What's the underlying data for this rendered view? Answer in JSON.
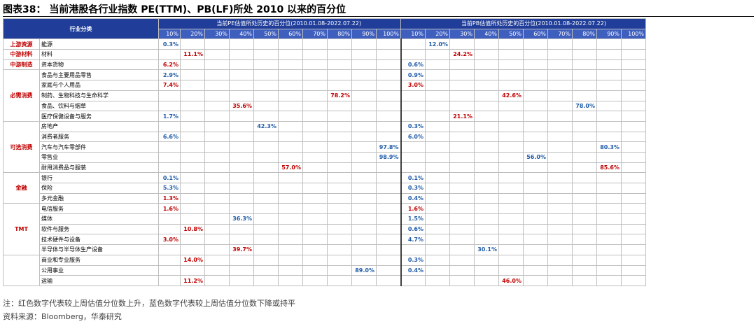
{
  "title": "图表38：  当前港股各行业指数 PE(TTM)、PB(LF)所处 2010 以来的百分位",
  "header": {
    "category_label": "行业分类",
    "pe_group": "当前PE估值所处历史的百分位(2010.01.08-2022.07.22)",
    "pb_group": "当前PB估值所处历史的百分位(2010.01.08-2022.07.22)",
    "pct_labels": [
      "10%",
      "20%",
      "30%",
      "40%",
      "50%",
      "60%",
      "70%",
      "80%",
      "90%",
      "100%"
    ]
  },
  "groups": [
    {
      "sector": "上游资源",
      "rows": [
        {
          "name": "能源",
          "pe": {
            "col": 0,
            "text": "0.3%",
            "color": "blue"
          },
          "pb": {
            "col": 1,
            "text": "12.0%",
            "color": "blue"
          }
        }
      ]
    },
    {
      "sector": "中游材料",
      "rows": [
        {
          "name": "材料",
          "pe": {
            "col": 1,
            "text": "11.1%",
            "color": "red"
          },
          "pb": {
            "col": 2,
            "text": "24.2%",
            "color": "red"
          }
        }
      ]
    },
    {
      "sector": "中游制造",
      "rows": [
        {
          "name": "资本货物",
          "pe": {
            "col": 0,
            "text": "6.2%",
            "color": "red"
          },
          "pb": {
            "col": 0,
            "text": "0.6%",
            "color": "blue"
          }
        }
      ]
    },
    {
      "sector": "必需消费",
      "rows": [
        {
          "name": "食品与主要用品零售",
          "pe": {
            "col": 0,
            "text": "2.9%",
            "color": "blue"
          },
          "pb": {
            "col": 0,
            "text": "0.9%",
            "color": "blue"
          }
        },
        {
          "name": "家庭与个人用品",
          "pe": {
            "col": 0,
            "text": "7.4%",
            "color": "red"
          },
          "pb": {
            "col": 0,
            "text": "3.0%",
            "color": "red"
          }
        },
        {
          "name": "制药、生物科技与生命科学",
          "pe": {
            "col": 7,
            "text": "78.2%",
            "color": "red"
          },
          "pb": {
            "col": 4,
            "text": "42.6%",
            "color": "red"
          }
        },
        {
          "name": "食品、饮料与烟草",
          "pe": {
            "col": 3,
            "text": "35.6%",
            "color": "red"
          },
          "pb": {
            "col": 7,
            "text": "78.0%",
            "color": "blue"
          }
        },
        {
          "name": "医疗保健设备与服务",
          "pe": {
            "col": 0,
            "text": "1.7%",
            "color": "blue"
          },
          "pb": {
            "col": 2,
            "text": "21.1%",
            "color": "red"
          }
        }
      ]
    },
    {
      "sector": "可选消费",
      "rows": [
        {
          "name": "房地产",
          "pe": {
            "col": 4,
            "text": "42.3%",
            "color": "blue"
          },
          "pb": {
            "col": 0,
            "text": "0.3%",
            "color": "blue"
          }
        },
        {
          "name": "消费者服务",
          "pe": {
            "col": 0,
            "text": "6.6%",
            "color": "blue"
          },
          "pb": {
            "col": 0,
            "text": "6.0%",
            "color": "blue"
          }
        },
        {
          "name": "汽车与汽车零部件",
          "pe": {
            "col": 9,
            "text": "97.8%",
            "color": "blue"
          },
          "pb": {
            "col": 8,
            "text": "80.3%",
            "color": "blue"
          }
        },
        {
          "name": "零售业",
          "pe": {
            "col": 9,
            "text": "98.9%",
            "color": "blue"
          },
          "pb": {
            "col": 5,
            "text": "56.0%",
            "color": "blue"
          }
        },
        {
          "name": "耐用消费品与服装",
          "pe": {
            "col": 5,
            "text": "57.0%",
            "color": "red"
          },
          "pb": {
            "col": 8,
            "text": "85.6%",
            "color": "red"
          }
        }
      ]
    },
    {
      "sector": "金融",
      "rows": [
        {
          "name": "银行",
          "pe": {
            "col": 0,
            "text": "0.1%",
            "color": "blue"
          },
          "pb": {
            "col": 0,
            "text": "0.1%",
            "color": "blue"
          }
        },
        {
          "name": "保险",
          "pe": {
            "col": 0,
            "text": "5.3%",
            "color": "blue"
          },
          "pb": {
            "col": 0,
            "text": "0.3%",
            "color": "blue"
          }
        },
        {
          "name": "多元金融",
          "pe": {
            "col": 0,
            "text": "1.3%",
            "color": "red"
          },
          "pb": {
            "col": 0,
            "text": "0.4%",
            "color": "blue"
          }
        }
      ]
    },
    {
      "sector": "TMT",
      "rows": [
        {
          "name": "电信服务",
          "pe": {
            "col": 0,
            "text": "1.6%",
            "color": "red"
          },
          "pb": {
            "col": 0,
            "text": "1.6%",
            "color": "red"
          }
        },
        {
          "name": "媒体",
          "pe": {
            "col": 3,
            "text": "36.3%",
            "color": "blue"
          },
          "pb": {
            "col": 0,
            "text": "1.5%",
            "color": "blue"
          }
        },
        {
          "name": "软件与服务",
          "pe": {
            "col": 1,
            "text": "10.8%",
            "color": "red"
          },
          "pb": {
            "col": 0,
            "text": "0.6%",
            "color": "blue"
          }
        },
        {
          "name": "技术硬件与设备",
          "pe": {
            "col": 0,
            "text": "3.0%",
            "color": "red"
          },
          "pb": {
            "col": 0,
            "text": "4.7%",
            "color": "blue"
          }
        },
        {
          "name": "半导体与半导体生产设备",
          "pe": {
            "col": 3,
            "text": "39.7%",
            "color": "red"
          },
          "pb": {
            "col": 3,
            "text": "30.1%",
            "color": "blue"
          }
        }
      ]
    },
    {
      "sector": "",
      "rows": [
        {
          "name": "商业和专业服务",
          "pe": {
            "col": 1,
            "text": "14.0%",
            "color": "red"
          },
          "pb": {
            "col": 0,
            "text": "0.3%",
            "color": "blue"
          }
        },
        {
          "name": "公用事业",
          "pe": {
            "col": 8,
            "text": "89.0%",
            "color": "blue"
          },
          "pb": {
            "col": 0,
            "text": "0.4%",
            "color": "blue"
          }
        },
        {
          "name": "运输",
          "pe": {
            "col": 1,
            "text": "11.2%",
            "color": "red"
          },
          "pb": {
            "col": 4,
            "text": "46.0%",
            "color": "red"
          }
        }
      ]
    }
  ],
  "colors": {
    "red": "#c00000",
    "blue": "#1f5ba8",
    "header": "#1f3d99"
  },
  "note": "注：红色数字代表较上周估值分位数上升，蓝色数字代表较上周估值分位数下降或持平",
  "source": "资料来源：Bloomberg，华泰研究"
}
